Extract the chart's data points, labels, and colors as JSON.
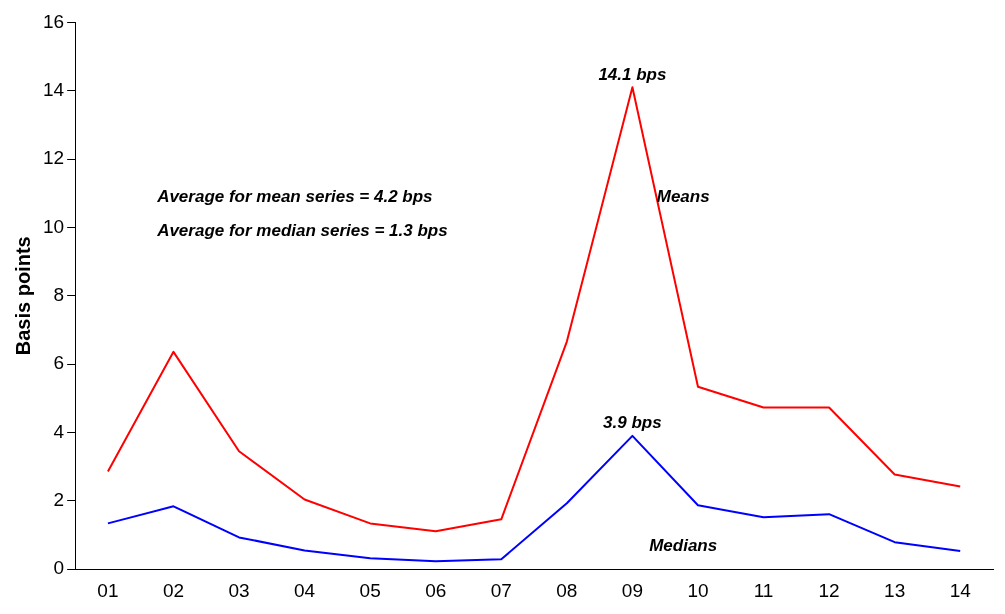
{
  "chart_data": {
    "type": "line",
    "ylabel": "Basis points",
    "categories": [
      "01",
      "02",
      "03",
      "04",
      "05",
      "06",
      "07",
      "08",
      "09",
      "10",
      "11",
      "12",
      "13",
      "14"
    ],
    "series": [
      {
        "name": "Means",
        "color": "#ff0000",
        "values": [
          2.86,
          6.36,
          3.45,
          2.04,
          1.34,
          1.11,
          1.46,
          6.66,
          14.1,
          5.34,
          4.73,
          4.73,
          2.77,
          2.42
        ]
      },
      {
        "name": "Medians",
        "color": "#0000ff",
        "values": [
          1.34,
          1.84,
          0.93,
          0.55,
          0.32,
          0.23,
          0.29,
          1.93,
          3.9,
          1.87,
          1.52,
          1.61,
          0.79,
          0.53
        ]
      }
    ],
    "ylim": [
      0,
      16
    ],
    "yticks": [
      0,
      2,
      4,
      6,
      8,
      10,
      12,
      14,
      16
    ],
    "grid": false,
    "legend": false,
    "marker": "none",
    "line_style": "solid",
    "annotations": [
      {
        "text": "14.1 bps",
        "x": "09",
        "y": 14.1
      },
      {
        "text": "3.9 bps",
        "x": "09",
        "y": 3.9
      },
      "Average for mean series = 4.2 bps",
      "Average for median series = 1.3 bps"
    ]
  }
}
